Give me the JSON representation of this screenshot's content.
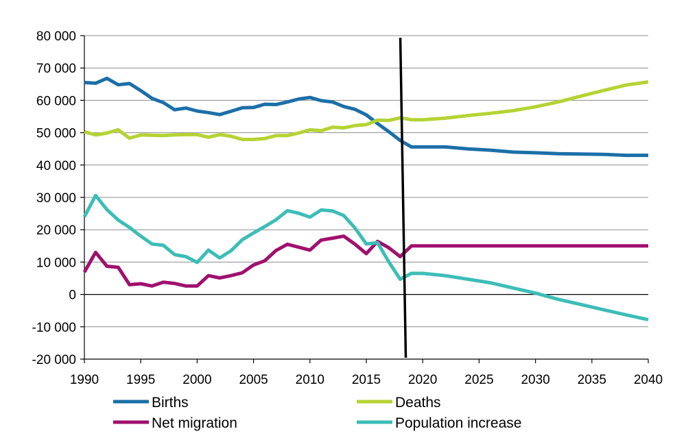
{
  "chart_data": {
    "type": "line",
    "title": "",
    "xlabel": "",
    "ylabel": "",
    "xlim": [
      1990,
      2040
    ],
    "ylim": [
      -20000,
      80000
    ],
    "x_ticks": [
      1990,
      1995,
      2000,
      2005,
      2010,
      2015,
      2020,
      2025,
      2030,
      2035,
      2040
    ],
    "x_tick_labels": [
      "1990",
      "1995",
      "2000",
      "2005",
      "2010",
      "2015",
      "2020",
      "2025",
      "2030",
      "2035",
      "2040"
    ],
    "y_ticks": [
      -20000,
      -10000,
      0,
      10000,
      20000,
      30000,
      40000,
      50000,
      60000,
      70000,
      80000
    ],
    "y_tick_labels": [
      "-20 000",
      "-10 000",
      "0",
      "10 000",
      "20 000",
      "30 000",
      "40 000",
      "50 000",
      "60 000",
      "70 000",
      "80 000"
    ],
    "grid": "horizontal",
    "legend_position": "bottom",
    "divider_year": 2018.5,
    "series": [
      {
        "name": "Births",
        "color": "#1b6fa8",
        "points": [
          [
            1990,
            65500
          ],
          [
            1991,
            65300
          ],
          [
            1992,
            66800
          ],
          [
            1993,
            64800
          ],
          [
            1994,
            65200
          ],
          [
            1995,
            63000
          ],
          [
            1996,
            60600
          ],
          [
            1997,
            59300
          ],
          [
            1998,
            57100
          ],
          [
            1999,
            57600
          ],
          [
            2000,
            56700
          ],
          [
            2001,
            56200
          ],
          [
            2002,
            55600
          ],
          [
            2003,
            56600
          ],
          [
            2004,
            57700
          ],
          [
            2005,
            57800
          ],
          [
            2006,
            58800
          ],
          [
            2007,
            58700
          ],
          [
            2008,
            59500
          ],
          [
            2009,
            60400
          ],
          [
            2010,
            60900
          ],
          [
            2011,
            59900
          ],
          [
            2012,
            59500
          ],
          [
            2013,
            58100
          ],
          [
            2014,
            57200
          ],
          [
            2015,
            55500
          ],
          [
            2016,
            52800
          ],
          [
            2017,
            50300
          ],
          [
            2018,
            47600
          ],
          [
            2019,
            45600
          ],
          [
            2020,
            45600
          ],
          [
            2022,
            45600
          ],
          [
            2024,
            45000
          ],
          [
            2026,
            44600
          ],
          [
            2028,
            44000
          ],
          [
            2030,
            43800
          ],
          [
            2032,
            43500
          ],
          [
            2034,
            43400
          ],
          [
            2036,
            43300
          ],
          [
            2038,
            43000
          ],
          [
            2040,
            43000
          ]
        ]
      },
      {
        "name": "Deaths",
        "color": "#b5d334",
        "points": [
          [
            1990,
            50300
          ],
          [
            1991,
            49300
          ],
          [
            1992,
            49900
          ],
          [
            1993,
            50900
          ],
          [
            1994,
            48300
          ],
          [
            1995,
            49300
          ],
          [
            1996,
            49200
          ],
          [
            1997,
            49100
          ],
          [
            1998,
            49300
          ],
          [
            1999,
            49400
          ],
          [
            2000,
            49400
          ],
          [
            2001,
            48600
          ],
          [
            2002,
            49400
          ],
          [
            2003,
            48900
          ],
          [
            2004,
            47900
          ],
          [
            2005,
            47900
          ],
          [
            2006,
            48200
          ],
          [
            2007,
            49100
          ],
          [
            2008,
            49100
          ],
          [
            2009,
            49900
          ],
          [
            2010,
            50900
          ],
          [
            2011,
            50600
          ],
          [
            2012,
            51700
          ],
          [
            2013,
            51500
          ],
          [
            2014,
            52200
          ],
          [
            2015,
            52500
          ],
          [
            2016,
            53900
          ],
          [
            2017,
            53800
          ],
          [
            2018,
            54600
          ],
          [
            2019,
            54000
          ],
          [
            2020,
            54000
          ],
          [
            2022,
            54500
          ],
          [
            2024,
            55300
          ],
          [
            2026,
            56000
          ],
          [
            2028,
            56800
          ],
          [
            2030,
            58000
          ],
          [
            2032,
            59500
          ],
          [
            2034,
            61300
          ],
          [
            2036,
            63000
          ],
          [
            2038,
            64700
          ],
          [
            2040,
            65700
          ]
        ]
      },
      {
        "name": "Net migration",
        "color": "#a0106e",
        "points": [
          [
            1990,
            6900
          ],
          [
            1991,
            13000
          ],
          [
            1992,
            8700
          ],
          [
            1993,
            8400
          ],
          [
            1994,
            3000
          ],
          [
            1995,
            3300
          ],
          [
            1996,
            2600
          ],
          [
            1997,
            3800
          ],
          [
            1998,
            3400
          ],
          [
            1999,
            2600
          ],
          [
            2000,
            2600
          ],
          [
            2001,
            5800
          ],
          [
            2002,
            5100
          ],
          [
            2003,
            5800
          ],
          [
            2004,
            6700
          ],
          [
            2005,
            9100
          ],
          [
            2006,
            10400
          ],
          [
            2007,
            13600
          ],
          [
            2008,
            15500
          ],
          [
            2009,
            14600
          ],
          [
            2010,
            13700
          ],
          [
            2011,
            16800
          ],
          [
            2012,
            17400
          ],
          [
            2013,
            18000
          ],
          [
            2014,
            15500
          ],
          [
            2015,
            12600
          ],
          [
            2016,
            16400
          ],
          [
            2017,
            14400
          ],
          [
            2018,
            11700
          ],
          [
            2019,
            15000
          ],
          [
            2020,
            15000
          ],
          [
            2040,
            15000
          ]
        ]
      },
      {
        "name": "Population increase",
        "color": "#3dbdb7",
        "points": [
          [
            1990,
            24000
          ],
          [
            1991,
            30600
          ],
          [
            1992,
            26200
          ],
          [
            1993,
            23000
          ],
          [
            1994,
            20700
          ],
          [
            1995,
            18000
          ],
          [
            1996,
            15600
          ],
          [
            1997,
            15200
          ],
          [
            1998,
            12300
          ],
          [
            1999,
            11700
          ],
          [
            2000,
            9900
          ],
          [
            2001,
            13700
          ],
          [
            2002,
            11300
          ],
          [
            2003,
            13500
          ],
          [
            2004,
            16900
          ],
          [
            2005,
            19000
          ],
          [
            2006,
            21000
          ],
          [
            2007,
            23100
          ],
          [
            2008,
            25900
          ],
          [
            2009,
            25100
          ],
          [
            2010,
            23900
          ],
          [
            2011,
            26100
          ],
          [
            2012,
            25800
          ],
          [
            2013,
            24400
          ],
          [
            2014,
            20500
          ],
          [
            2015,
            15600
          ],
          [
            2016,
            16000
          ],
          [
            2017,
            10000
          ],
          [
            2018,
            4700
          ],
          [
            2019,
            6500
          ],
          [
            2020,
            6500
          ],
          [
            2022,
            5800
          ],
          [
            2024,
            4700
          ],
          [
            2026,
            3600
          ],
          [
            2028,
            2000
          ],
          [
            2030,
            400
          ],
          [
            2032,
            -1500
          ],
          [
            2034,
            -3100
          ],
          [
            2036,
            -4700
          ],
          [
            2038,
            -6300
          ],
          [
            2040,
            -7800
          ]
        ]
      }
    ]
  }
}
